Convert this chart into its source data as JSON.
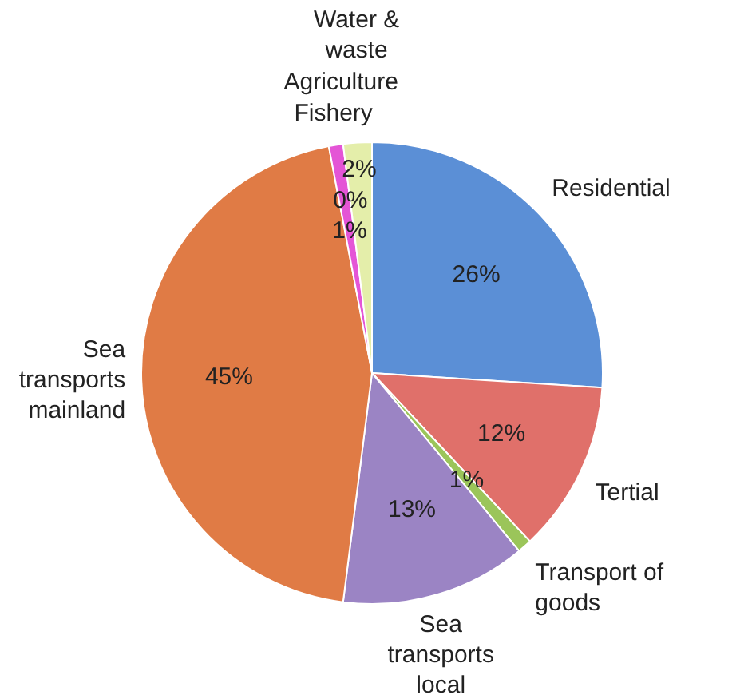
{
  "chart_data": {
    "type": "pie",
    "categories": [
      "Residential",
      "Tertial",
      "Transport of goods",
      "Sea transports local",
      "Sea transports mainland",
      "Fishery",
      "Agriculture",
      "Water & waste"
    ],
    "values": [
      26,
      12,
      1,
      13,
      45,
      1,
      0,
      2
    ],
    "value_labels": [
      "26%",
      "12%",
      "1%",
      "13%",
      "45%",
      "1%",
      "0%",
      "2%"
    ],
    "colors": [
      "#5b8fd6",
      "#e0706a",
      "#9bc55a",
      "#9b84c4",
      "#e07b45",
      "#e455d6",
      "#b0b0b0",
      "#e4eeaa"
    ],
    "legend": false
  }
}
